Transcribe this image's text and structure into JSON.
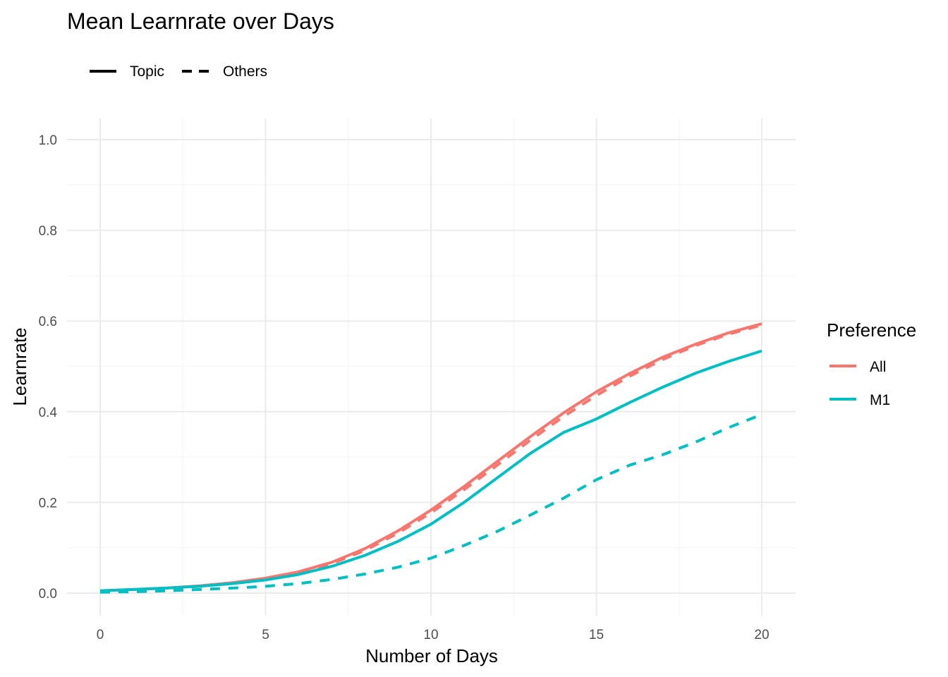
{
  "chart_data": {
    "type": "line",
    "title": "Mean Learnrate over Days",
    "xlabel": "Number of Days",
    "ylabel": "Learnrate",
    "xlim": [
      0,
      20
    ],
    "ylim": [
      0,
      1
    ],
    "x_ticks": [
      0,
      5,
      10,
      15,
      20
    ],
    "y_ticks": [
      0.0,
      0.2,
      0.4,
      0.6,
      0.8,
      1.0
    ],
    "x_tick_labels": [
      "0",
      "5",
      "10",
      "15",
      "20"
    ],
    "y_tick_labels": [
      "0.0",
      "0.2",
      "0.4",
      "0.6",
      "0.8",
      "1.0"
    ],
    "grid": true,
    "linetype_legend": {
      "placement": "top-left",
      "entries": [
        {
          "label": "Topic",
          "style": "solid"
        },
        {
          "label": "Others",
          "style": "dashed"
        }
      ]
    },
    "color_legend": {
      "title": "Preference",
      "placement": "right",
      "entries": [
        {
          "label": "All",
          "color": "#F8766D"
        },
        {
          "label": "M1",
          "color": "#00BFC4"
        }
      ]
    },
    "x": [
      0,
      1,
      2,
      3,
      4,
      5,
      6,
      7,
      8,
      9,
      10,
      11,
      12,
      13,
      14,
      15,
      16,
      17,
      18,
      19,
      20
    ],
    "series": [
      {
        "preference": "All",
        "linetype": "Topic",
        "color": "#F8766D",
        "style": "solid",
        "values": [
          0.005,
          0.008,
          0.011,
          0.016,
          0.023,
          0.033,
          0.047,
          0.068,
          0.098,
          0.137,
          0.183,
          0.235,
          0.29,
          0.345,
          0.397,
          0.444,
          0.484,
          0.52,
          0.549,
          0.574,
          0.594
        ]
      },
      {
        "preference": "All",
        "linetype": "Others",
        "color": "#F8766D",
        "style": "dashed",
        "values": [
          0.004,
          0.007,
          0.01,
          0.015,
          0.022,
          0.031,
          0.045,
          0.065,
          0.094,
          0.132,
          0.177,
          0.228,
          0.282,
          0.337,
          0.389,
          0.436,
          0.478,
          0.515,
          0.546,
          0.571,
          0.591
        ]
      },
      {
        "preference": "M1",
        "linetype": "Topic",
        "color": "#00BFC4",
        "style": "solid",
        "values": [
          0.005,
          0.008,
          0.011,
          0.015,
          0.021,
          0.029,
          0.041,
          0.059,
          0.083,
          0.114,
          0.152,
          0.2,
          0.254,
          0.308,
          0.354,
          0.384,
          0.42,
          0.454,
          0.485,
          0.511,
          0.534
        ]
      },
      {
        "preference": "M1",
        "linetype": "Others",
        "color": "#00BFC4",
        "style": "dashed",
        "values": [
          0.002,
          0.003,
          0.005,
          0.008,
          0.011,
          0.015,
          0.021,
          0.03,
          0.042,
          0.057,
          0.077,
          0.105,
          0.136,
          0.172,
          0.209,
          0.25,
          0.282,
          0.305,
          0.333,
          0.365,
          0.394
        ]
      }
    ]
  }
}
